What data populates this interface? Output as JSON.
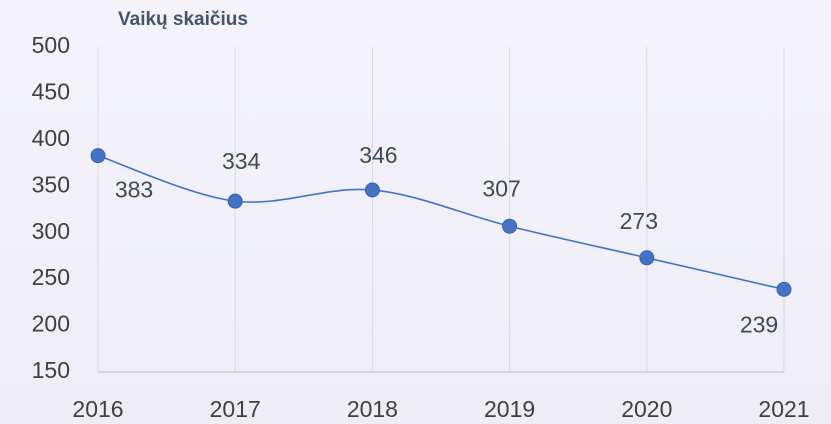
{
  "chart_data": {
    "type": "line",
    "title": "Vaikų skaičius",
    "categories": [
      "2016",
      "2017",
      "2018",
      "2019",
      "2020",
      "2021"
    ],
    "series": [
      {
        "name": "Vaikų skaičius",
        "color": "#4472c4",
        "values": [
          383,
          334,
          346,
          307,
          273,
          239
        ]
      }
    ],
    "ylim": [
      150,
      500
    ],
    "yticks": [
      150,
      200,
      250,
      300,
      350,
      400,
      450,
      500
    ],
    "smooth": true,
    "data_labels": true,
    "vertical_grid": true
  }
}
